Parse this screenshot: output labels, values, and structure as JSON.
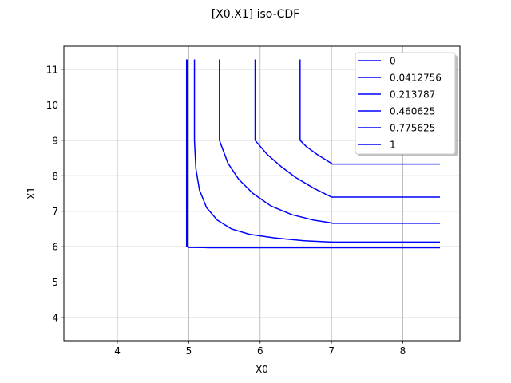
{
  "chart_data": {
    "type": "line",
    "title": "[X0,X1] iso-CDF",
    "xlabel": "X0",
    "ylabel": "X1",
    "xlim": [
      3.25,
      8.8
    ],
    "ylim": [
      3.35,
      11.65
    ],
    "xticks": [
      4,
      5,
      6,
      7,
      8
    ],
    "yticks": [
      4,
      5,
      6,
      7,
      8,
      9,
      10,
      11
    ],
    "xtick_labels": [
      "4",
      "5",
      "6",
      "7",
      "8"
    ],
    "ytick_labels": [
      "4",
      "5",
      "6",
      "7",
      "8",
      "9",
      "10",
      "11"
    ],
    "grid": true,
    "legend_position": "top-right",
    "line_color": "#0000ff",
    "series": [
      {
        "name": "0",
        "x": [
          4.97,
          4.97,
          4.98,
          5.0,
          5.6,
          6.5,
          7.5,
          8.52
        ],
        "y": [
          11.28,
          6.02,
          6.0,
          5.98,
          5.98,
          5.98,
          5.98,
          5.98
        ]
      },
      {
        "name": "0.0412756",
        "x": [
          4.98,
          4.98,
          5.0,
          5.3,
          6.0,
          7.0,
          8.52
        ],
        "y": [
          11.28,
          6.02,
          5.99,
          5.97,
          5.97,
          5.97,
          5.97
        ]
      },
      {
        "name": "0.213787",
        "x": [
          5.08,
          5.08,
          5.1,
          5.15,
          5.25,
          5.4,
          5.6,
          5.85,
          6.2,
          6.6,
          7.0,
          7.01,
          8.52
        ],
        "y": [
          11.28,
          9.0,
          8.2,
          7.6,
          7.1,
          6.75,
          6.5,
          6.35,
          6.25,
          6.17,
          6.13,
          6.13,
          6.13
        ]
      },
      {
        "name": "0.460625",
        "x": [
          5.43,
          5.43,
          5.55,
          5.7,
          5.9,
          6.15,
          6.45,
          6.75,
          7.0,
          7.01,
          8.52
        ],
        "y": [
          11.28,
          9.0,
          8.35,
          7.9,
          7.5,
          7.15,
          6.9,
          6.75,
          6.67,
          6.66,
          6.66
        ]
      },
      {
        "name": "0.775625",
        "x": [
          5.93,
          5.93,
          6.1,
          6.3,
          6.5,
          6.75,
          7.0,
          7.01,
          8.52
        ],
        "y": [
          11.28,
          9.0,
          8.6,
          8.25,
          7.95,
          7.65,
          7.4,
          7.4,
          7.4
        ]
      },
      {
        "name": "1",
        "x": [
          6.56,
          6.56,
          6.65,
          6.8,
          7.0,
          7.01,
          8.52
        ],
        "y": [
          11.28,
          9.0,
          8.82,
          8.6,
          8.35,
          8.33,
          8.33
        ]
      }
    ]
  }
}
